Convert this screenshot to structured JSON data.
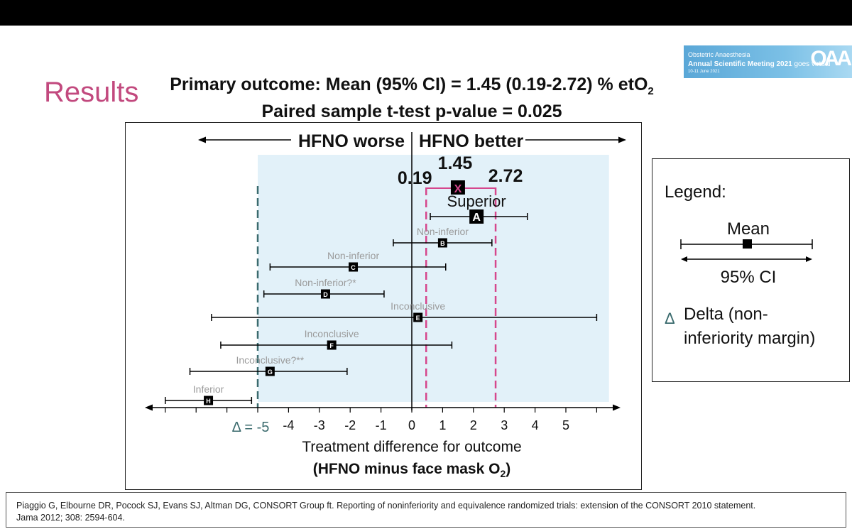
{
  "page": {
    "results_label": "Results",
    "header_line1": "Primary outcome: Mean (95% CI) = 1.45 (0.19-2.72) % etO",
    "header_line1_sub": "2",
    "header_line2": "Paired sample t-test p-value = 0.025"
  },
  "banner": {
    "line1": "Obstetric Anaesthesia",
    "line2": "Annual Scientific Meeting 2021",
    "line2_suffix": "goes virtual",
    "line3": "10-11 June 2021",
    "logo": "OAA"
  },
  "colors": {
    "results_text": "#c2497e",
    "pink_dashed": "#d6478d",
    "delta_dashed": "#3b6b6e",
    "shaded_region": "#e2f1f9",
    "ci_line": "#000000",
    "faint_label": "#9b9b9b"
  },
  "chart_data": {
    "type": "forest",
    "direction_left": "HFNO worse",
    "direction_right": "HFNO better",
    "xlabel_line1": "Treatment difference for outcome",
    "xlabel_line2": "(HFNO minus face mask O",
    "xlabel_line2_sub": "2",
    "xlabel_line2_end": ")",
    "xlim": [
      -8.5,
      6.8
    ],
    "x_ticks": [
      -4,
      -3,
      -2,
      -1,
      0,
      1,
      2,
      3,
      4,
      5
    ],
    "delta_value": -5,
    "delta_label": "Δ = -5",
    "shaded_range": [
      -5,
      6.4
    ],
    "primary": {
      "mean": 1.45,
      "ci_low": 0.19,
      "ci_high": 2.72,
      "mean_label": "1.45",
      "low_label": "0.19",
      "high_label": "2.72",
      "marker": "X"
    },
    "scenarios": [
      {
        "letter": "A",
        "label": "Superior",
        "mean": 2.1,
        "low": 0.6,
        "high": 3.75
      },
      {
        "letter": "B",
        "label": "Non-inferior",
        "mean": 1.0,
        "low": -0.6,
        "high": 2.6
      },
      {
        "letter": "C",
        "label": "Non-inferior",
        "mean": -1.9,
        "low": -4.6,
        "high": 1.1
      },
      {
        "letter": "D",
        "label": "Non-inferior?*",
        "mean": -2.8,
        "low": -4.8,
        "high": -0.9
      },
      {
        "letter": "E",
        "label": "Inconclusive",
        "mean": 0.2,
        "low": -6.5,
        "high": 6.0
      },
      {
        "letter": "F",
        "label": "Inconclusive",
        "mean": -2.6,
        "low": -6.2,
        "high": 1.3
      },
      {
        "letter": "G",
        "label": "Inconclusive?**",
        "mean": -4.6,
        "low": -7.2,
        "high": -2.1
      },
      {
        "letter": "H",
        "label": "Inferior",
        "mean": -6.6,
        "low": -8.0,
        "high": -5.2
      }
    ]
  },
  "legend": {
    "title": "Legend:",
    "mean_label": "Mean",
    "ci_label": "95% CI",
    "delta_symbol": "Δ",
    "delta_line1": "Delta (non-",
    "delta_line2": "inferiority margin)"
  },
  "reference": {
    "line1": "Piaggio G, Elbourne DR, Pocock SJ, Evans SJ, Altman DG, CONSORT Group ft. Reporting of noninferiority and equivalence randomized trials: extension of the CONSORT 2010 statement.",
    "line2": "Jama 2012; 308: 2594-604."
  }
}
